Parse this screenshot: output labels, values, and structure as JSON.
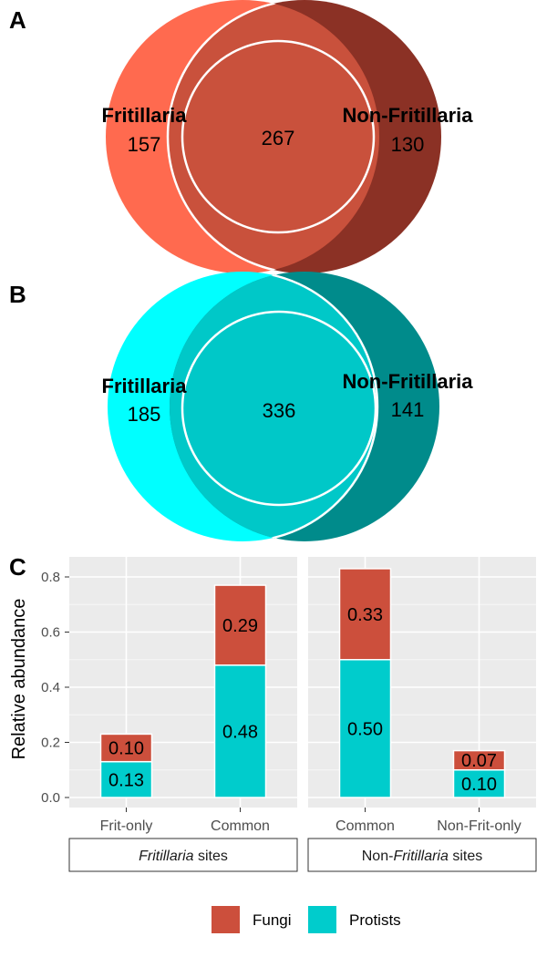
{
  "panels": {
    "a_label": "A",
    "b_label": "B",
    "c_label": "C"
  },
  "venn_a": {
    "left_name": "Fritillaria",
    "right_name": "Non-Fritillaria",
    "left_only": "157",
    "overlap": "267",
    "right_only": "130",
    "colors": {
      "left": "#ff6a4f",
      "right": "#8b3125",
      "overlap": "#c9513c"
    }
  },
  "venn_b": {
    "left_name": "Fritillaria",
    "right_name": "Non-Fritillaria",
    "left_only": "185",
    "overlap": "336",
    "right_only": "141",
    "colors": {
      "left": "#00ffff",
      "right": "#008b8b",
      "overlap": "#00c8c8"
    }
  },
  "chart_data": {
    "type": "bar",
    "stacked": true,
    "ylabel": "Relative abundance",
    "ylim": [
      0,
      0.87
    ],
    "yticks": [
      "0.0",
      "0.2",
      "0.4",
      "0.6",
      "0.8"
    ],
    "grid": true,
    "legend_position": "bottom",
    "facets": [
      {
        "label_italic": "Fritillaria",
        "label_suffix": " sites",
        "categories": [
          "Frit-only",
          "Common"
        ],
        "series": [
          {
            "name": "Protists",
            "values": [
              0.13,
              0.48
            ],
            "labels": [
              "0.13",
              "0.48"
            ]
          },
          {
            "name": "Fungi",
            "values": [
              0.1,
              0.29
            ],
            "labels": [
              "0.10",
              "0.29"
            ]
          }
        ]
      },
      {
        "label_prefix": "Non-",
        "label_italic": "Fritillaria",
        "label_suffix": " sites",
        "categories": [
          "Common",
          "Non-Frit-only"
        ],
        "series": [
          {
            "name": "Protists",
            "values": [
              0.5,
              0.1
            ],
            "labels": [
              "0.50",
              "0.10"
            ]
          },
          {
            "name": "Fungi",
            "values": [
              0.33,
              0.07
            ],
            "labels": [
              "0.33",
              "0.07"
            ]
          }
        ]
      }
    ],
    "legend": [
      {
        "name": "Fungi",
        "color": "#cc4f3c"
      },
      {
        "name": "Protists",
        "color": "#00cccc"
      }
    ]
  }
}
